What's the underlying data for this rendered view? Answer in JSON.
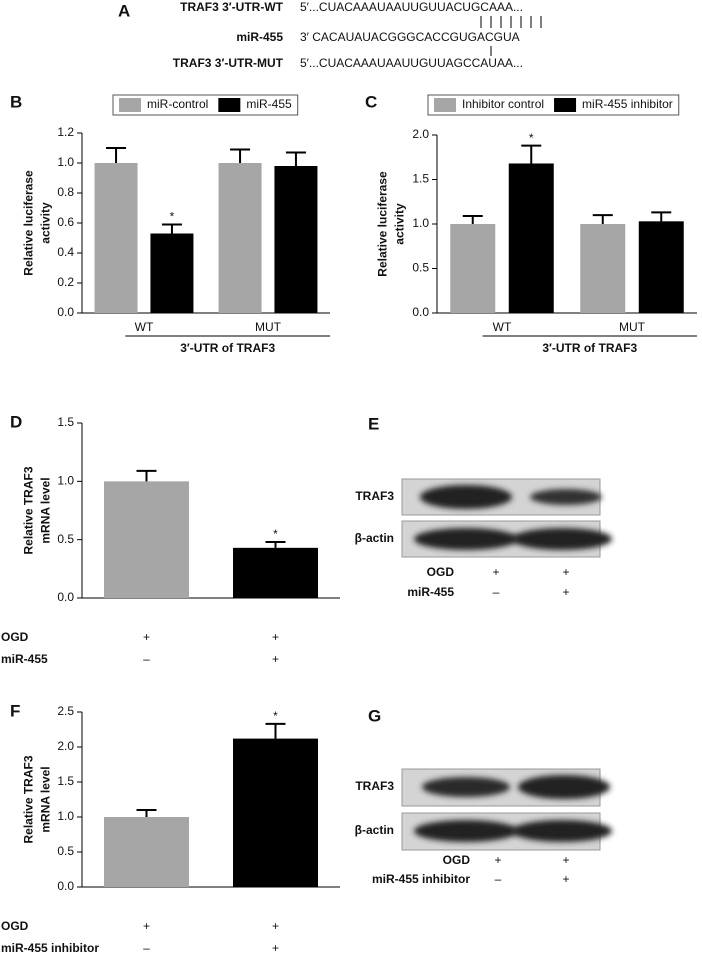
{
  "panel_a": {
    "label": "A",
    "rows": [
      {
        "name": "TRAF3 3′-UTR-WT",
        "seq": "5′...CUACAAAUAAUUGUUACUGCAAA..."
      },
      {
        "name": "miR-455",
        "seq": "3′ CACAUAUACGGGCACCGUGACGUA"
      },
      {
        "name": "TRAF3 3′-UTR-MUT",
        "seq": "5′...CUACAAAUAAUUGUUAGCCAUAA..."
      }
    ]
  },
  "chart_data": [
    {
      "type": "bar",
      "label": "B",
      "ylabel": [
        "Relative luciferase",
        "activity"
      ],
      "categories": [
        "WT",
        "MUT"
      ],
      "xlabel": "3′-UTR of TRAF3",
      "ylim": [
        0,
        1.2
      ],
      "yticks": [
        {
          "value": 0,
          "label": "0.0"
        },
        {
          "value": 0.2,
          "label": "0.2"
        },
        {
          "value": 0.4,
          "label": "0.4"
        },
        {
          "value": 0.6,
          "label": "0.6"
        },
        {
          "value": 0.8,
          "label": "0.8"
        },
        {
          "value": 1,
          "label": "1.0"
        },
        {
          "value": 1.2,
          "label": "1.2"
        }
      ],
      "series": [
        {
          "name": "miR-control",
          "color": "#a6a6a6",
          "values": [
            1.0,
            1.0
          ],
          "errors": [
            0.1,
            0.09
          ],
          "annotations": [
            null,
            null
          ]
        },
        {
          "name": "miR-455",
          "color": "#000000",
          "values": [
            0.53,
            0.98
          ],
          "errors": [
            0.06,
            0.09
          ],
          "annotations": [
            "*",
            null
          ]
        }
      ]
    },
    {
      "type": "bar",
      "label": "C",
      "ylabel": [
        "Relative luciferase",
        "activity"
      ],
      "categories": [
        "WT",
        "MUT"
      ],
      "xlabel": "3′-UTR of TRAF3",
      "ylim": [
        0,
        2.0
      ],
      "yticks": [
        {
          "value": 0,
          "label": "0.0"
        },
        {
          "value": 0.5,
          "label": "0.5"
        },
        {
          "value": 1,
          "label": "1.0"
        },
        {
          "value": 1.5,
          "label": "1.5"
        },
        {
          "value": 2,
          "label": "2.0"
        }
      ],
      "series": [
        {
          "name": "Inhibitor control",
          "color": "#a6a6a6",
          "values": [
            1.0,
            1.0
          ],
          "errors": [
            0.09,
            0.1
          ],
          "annotations": [
            null,
            null
          ]
        },
        {
          "name": "miR-455 inhibitor",
          "color": "#000000",
          "values": [
            1.68,
            1.03
          ],
          "errors": [
            0.2,
            0.1
          ],
          "annotations": [
            "*",
            null
          ]
        }
      ]
    },
    {
      "type": "bar",
      "label": "D",
      "ylabel": [
        "Relative TRAF3",
        "mRNA level"
      ],
      "ylim": [
        0,
        1.5
      ],
      "yticks": [
        {
          "value": 0,
          "label": "0.0"
        },
        {
          "value": 0.5,
          "label": "0.5"
        },
        {
          "value": 1,
          "label": "1.0"
        },
        {
          "value": 1.5,
          "label": "1.5"
        }
      ],
      "values": [
        1.0,
        0.43
      ],
      "errors": [
        0.09,
        0.05
      ],
      "colors": [
        "#a6a6a6",
        "#000000"
      ],
      "annotations": [
        null,
        "*"
      ],
      "conditions": [
        {
          "name": "OGD",
          "marks": [
            "+",
            "+"
          ]
        },
        {
          "name": "miR-455",
          "marks": [
            "–",
            "+"
          ]
        }
      ]
    },
    {
      "type": "bar",
      "label": "F",
      "ylabel": [
        "Relative TRAF3",
        "mRNA level"
      ],
      "ylim": [
        0,
        2.5
      ],
      "yticks": [
        {
          "value": 0,
          "label": "0.0"
        },
        {
          "value": 0.5,
          "label": "0.5"
        },
        {
          "value": 1,
          "label": "1.0"
        },
        {
          "value": 1.5,
          "label": "1.5"
        },
        {
          "value": 2,
          "label": "2.0"
        },
        {
          "value": 2.5,
          "label": "2.5"
        }
      ],
      "values": [
        1.0,
        2.12
      ],
      "errors": [
        0.1,
        0.21
      ],
      "colors": [
        "#a6a6a6",
        "#000000"
      ],
      "annotations": [
        null,
        "*"
      ],
      "conditions": [
        {
          "name": "OGD",
          "marks": [
            "+",
            "+"
          ]
        },
        {
          "name": "miR-455 inhibitor",
          "marks": [
            "–",
            "+"
          ]
        }
      ]
    }
  ],
  "blot_e": {
    "label": "E",
    "rows": [
      "TRAF3",
      "β-actin"
    ],
    "conditions": [
      {
        "name": "OGD",
        "marks": [
          "+",
          "+"
        ]
      },
      {
        "name": "miR-455",
        "marks": [
          "–",
          "+"
        ]
      }
    ]
  },
  "blot_g": {
    "label": "G",
    "rows": [
      "TRAF3",
      "β-actin"
    ],
    "conditions": [
      {
        "name": "OGD",
        "marks": [
          "+",
          "+"
        ]
      },
      {
        "name": "miR-455 inhibitor",
        "marks": [
          "–",
          "+"
        ]
      }
    ]
  }
}
